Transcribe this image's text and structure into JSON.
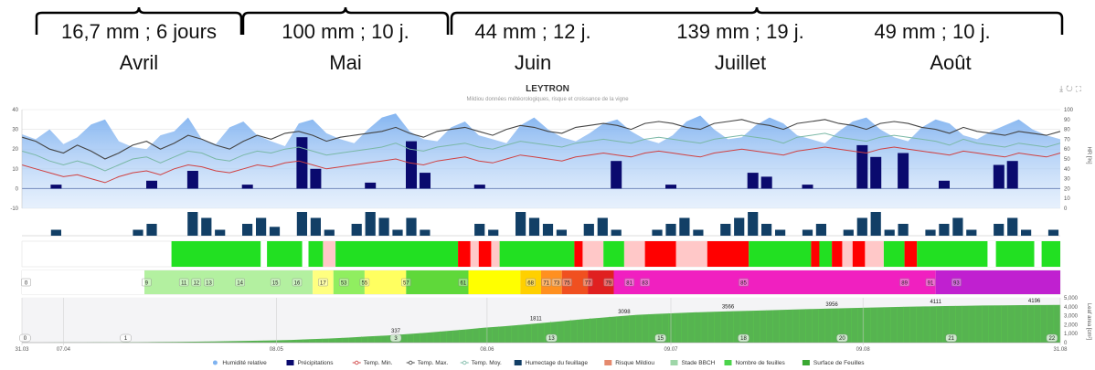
{
  "header": {
    "segments": [
      {
        "rain": "16,7 mm ; 6 jours",
        "month": "Avril"
      },
      {
        "rain": "100 mm ; 10 j.",
        "month": "Mai"
      },
      {
        "rain": "44 mm ; 12 j.",
        "month": "Juin"
      },
      {
        "rain": "139 mm ; 19 j.",
        "month": "Juillet"
      },
      {
        "rain": "49 mm ; 10 j.",
        "month": "Août"
      }
    ]
  },
  "chart_title": "LEYTRON",
  "chart_subtitle": "Mildiou données météorologiques, risque et croissance de la vigne",
  "toolbar": {
    "icons": [
      "download-icon",
      "refresh-icon",
      "fullscreen-icon"
    ]
  },
  "chart_data": {
    "type": "multi-panel",
    "left_axis_ticks": [
      "40",
      "30",
      "20",
      "10",
      "0",
      "-10"
    ],
    "right_axis_ticks": [
      "100",
      "90",
      "80",
      "70",
      "60",
      "50",
      "40",
      "30",
      "20",
      "10",
      "0"
    ],
    "right_axis_label": "HR [%]",
    "growth_right_ticks": [
      "5,000",
      "4,000",
      "3,000",
      "2,000",
      "1,000",
      "0"
    ],
    "growth_right_label": "Leaf area [cm²]",
    "x_ticks": [
      "31.03",
      "07.04",
      "08.05",
      "08.06",
      "09.07",
      "09.08",
      "31.08"
    ],
    "temp_min": [
      12,
      10,
      8,
      6,
      7,
      5,
      3,
      6,
      8,
      9,
      7,
      10,
      12,
      11,
      9,
      8,
      10,
      12,
      11,
      13,
      14,
      12,
      10,
      11,
      12,
      13,
      14,
      15,
      13,
      12,
      14,
      15,
      16,
      14,
      13,
      15,
      17,
      16,
      15,
      14,
      16,
      17,
      18,
      17,
      16,
      18,
      19,
      18,
      17,
      16,
      18,
      19,
      20,
      19,
      18,
      17,
      19,
      20,
      21,
      20,
      19,
      18,
      20,
      21,
      20,
      19,
      18,
      17,
      19,
      18,
      17,
      16,
      18,
      17,
      16,
      18
    ],
    "temp_max": [
      26,
      24,
      20,
      18,
      22,
      19,
      15,
      18,
      22,
      24,
      20,
      23,
      27,
      25,
      22,
      20,
      24,
      27,
      25,
      28,
      29,
      27,
      24,
      26,
      27,
      28,
      29,
      31,
      28,
      26,
      29,
      30,
      31,
      29,
      27,
      30,
      32,
      31,
      29,
      28,
      31,
      32,
      33,
      32,
      30,
      33,
      34,
      33,
      31,
      30,
      33,
      34,
      35,
      33,
      32,
      30,
      33,
      34,
      35,
      33,
      32,
      30,
      33,
      34,
      33,
      31,
      30,
      28,
      31,
      29,
      28,
      27,
      29,
      28,
      27,
      29
    ],
    "temp_moy": [
      19,
      17,
      14,
      12,
      14,
      12,
      9,
      12,
      15,
      16,
      13,
      16,
      19,
      18,
      15,
      14,
      17,
      19,
      18,
      20,
      21,
      19,
      17,
      18,
      19,
      20,
      21,
      23,
      20,
      19,
      21,
      22,
      23,
      21,
      20,
      22,
      24,
      23,
      22,
      21,
      23,
      24,
      25,
      24,
      23,
      25,
      26,
      25,
      24,
      23,
      25,
      26,
      27,
      26,
      25,
      23,
      26,
      27,
      28,
      26,
      25,
      24,
      26,
      27,
      26,
      25,
      24,
      22,
      25,
      23,
      22,
      21,
      23,
      22,
      21,
      23
    ],
    "humidity": [
      75,
      70,
      80,
      65,
      72,
      85,
      90,
      68,
      62,
      60,
      74,
      78,
      92,
      70,
      65,
      82,
      88,
      74,
      68,
      63,
      86,
      90,
      76,
      70,
      66,
      80,
      92,
      96,
      78,
      70,
      68,
      82,
      88,
      74,
      70,
      66,
      84,
      92,
      80,
      72,
      68,
      76,
      86,
      90,
      78,
      70,
      66,
      74,
      88,
      94,
      80,
      70,
      72,
      84,
      92,
      86,
      74,
      70,
      66,
      78,
      88,
      92,
      80,
      72,
      68,
      82,
      90,
      86,
      74,
      70,
      78,
      84,
      90,
      80,
      74,
      70
    ],
    "precipitation": [
      0,
      0,
      2,
      0,
      0,
      0,
      0,
      0,
      0,
      4,
      0,
      0,
      9,
      0,
      0,
      0,
      2,
      0,
      0,
      0,
      26,
      10,
      0,
      0,
      0,
      3,
      0,
      0,
      24,
      8,
      0,
      0,
      0,
      2,
      0,
      0,
      0,
      0,
      0,
      0,
      0,
      0,
      0,
      14,
      0,
      0,
      0,
      2,
      0,
      0,
      0,
      0,
      0,
      8,
      6,
      0,
      0,
      2,
      0,
      0,
      0,
      22,
      16,
      0,
      18,
      0,
      0,
      4,
      0,
      0,
      0,
      12,
      14,
      0,
      0,
      0
    ],
    "leaf_wetness": [
      0,
      0,
      2,
      0,
      0,
      0,
      0,
      0,
      2,
      4,
      0,
      0,
      8,
      6,
      2,
      0,
      4,
      6,
      3,
      0,
      8,
      6,
      2,
      0,
      4,
      8,
      6,
      2,
      6,
      2,
      0,
      0,
      0,
      4,
      2,
      0,
      8,
      6,
      4,
      2,
      0,
      4,
      6,
      2,
      0,
      0,
      2,
      4,
      6,
      2,
      0,
      4,
      6,
      8,
      4,
      2,
      0,
      2,
      4,
      0,
      2,
      6,
      8,
      2,
      4,
      0,
      2,
      4,
      6,
      2,
      0,
      4,
      6,
      2,
      0,
      2
    ],
    "risk_segments": [
      {
        "from": 0.144,
        "to": 0.23,
        "level": "low"
      },
      {
        "from": 0.23,
        "to": 0.236,
        "level": "none"
      },
      {
        "from": 0.236,
        "to": 0.27,
        "level": "low"
      },
      {
        "from": 0.27,
        "to": 0.276,
        "level": "none"
      },
      {
        "from": 0.276,
        "to": 0.29,
        "level": "low"
      },
      {
        "from": 0.29,
        "to": 0.302,
        "level": "moderate"
      },
      {
        "from": 0.302,
        "to": 0.42,
        "level": "low"
      },
      {
        "from": 0.42,
        "to": 0.432,
        "level": "high"
      },
      {
        "from": 0.432,
        "to": 0.44,
        "level": "moderate"
      },
      {
        "from": 0.44,
        "to": 0.452,
        "level": "high"
      },
      {
        "from": 0.452,
        "to": 0.46,
        "level": "moderate"
      },
      {
        "from": 0.46,
        "to": 0.532,
        "level": "low"
      },
      {
        "from": 0.532,
        "to": 0.54,
        "level": "high"
      },
      {
        "from": 0.54,
        "to": 0.56,
        "level": "moderate"
      },
      {
        "from": 0.56,
        "to": 0.58,
        "level": "low"
      },
      {
        "from": 0.58,
        "to": 0.6,
        "level": "moderate"
      },
      {
        "from": 0.6,
        "to": 0.63,
        "level": "high"
      },
      {
        "from": 0.63,
        "to": 0.66,
        "level": "moderate"
      },
      {
        "from": 0.66,
        "to": 0.7,
        "level": "high"
      },
      {
        "from": 0.7,
        "to": 0.76,
        "level": "low"
      },
      {
        "from": 0.76,
        "to": 0.768,
        "level": "high"
      },
      {
        "from": 0.768,
        "to": 0.78,
        "level": "low"
      },
      {
        "from": 0.78,
        "to": 0.79,
        "level": "high"
      },
      {
        "from": 0.79,
        "to": 0.8,
        "level": "moderate"
      },
      {
        "from": 0.8,
        "to": 0.812,
        "level": "high"
      },
      {
        "from": 0.812,
        "to": 0.83,
        "level": "moderate"
      },
      {
        "from": 0.83,
        "to": 0.85,
        "level": "low"
      },
      {
        "from": 0.85,
        "to": 0.862,
        "level": "high"
      },
      {
        "from": 0.862,
        "to": 0.93,
        "level": "low"
      },
      {
        "from": 0.93,
        "to": 0.938,
        "level": "none"
      },
      {
        "from": 0.938,
        "to": 0.975,
        "level": "low"
      },
      {
        "from": 0.975,
        "to": 0.982,
        "level": "none"
      },
      {
        "from": 0.982,
        "to": 1,
        "level": "low"
      }
    ],
    "bbch_segments": [
      {
        "from": 0.0,
        "to": 0.118,
        "color": "#ffffff"
      },
      {
        "from": 0.118,
        "to": 0.28,
        "color": "#b3f0a0"
      },
      {
        "from": 0.28,
        "to": 0.3,
        "color": "#ffff80"
      },
      {
        "from": 0.3,
        "to": 0.33,
        "color": "#90ee60"
      },
      {
        "from": 0.33,
        "to": 0.37,
        "color": "#ffff60"
      },
      {
        "from": 0.37,
        "to": 0.43,
        "color": "#5fd83a"
      },
      {
        "from": 0.43,
        "to": 0.48,
        "color": "#ffff00"
      },
      {
        "from": 0.48,
        "to": 0.5,
        "color": "#ffd000"
      },
      {
        "from": 0.5,
        "to": 0.52,
        "color": "#ff9020"
      },
      {
        "from": 0.52,
        "to": 0.545,
        "color": "#f05020"
      },
      {
        "from": 0.545,
        "to": 0.57,
        "color": "#e02020"
      },
      {
        "from": 0.57,
        "to": 0.88,
        "color": "#f020c0"
      },
      {
        "from": 0.88,
        "to": 1.0,
        "color": "#c020d0"
      }
    ],
    "bbch_labels": [
      {
        "pos": 0.004,
        "text": "0"
      },
      {
        "pos": 0.12,
        "text": "9"
      },
      {
        "pos": 0.156,
        "text": "11"
      },
      {
        "pos": 0.168,
        "text": "12"
      },
      {
        "pos": 0.18,
        "text": "13"
      },
      {
        "pos": 0.21,
        "text": "14"
      },
      {
        "pos": 0.244,
        "text": "15"
      },
      {
        "pos": 0.265,
        "text": "16"
      },
      {
        "pos": 0.29,
        "text": "17"
      },
      {
        "pos": 0.31,
        "text": "53"
      },
      {
        "pos": 0.33,
        "text": "55"
      },
      {
        "pos": 0.37,
        "text": "57"
      },
      {
        "pos": 0.425,
        "text": "61"
      },
      {
        "pos": 0.49,
        "text": "68"
      },
      {
        "pos": 0.505,
        "text": "71"
      },
      {
        "pos": 0.515,
        "text": "73"
      },
      {
        "pos": 0.525,
        "text": "75"
      },
      {
        "pos": 0.545,
        "text": "77"
      },
      {
        "pos": 0.565,
        "text": "79"
      },
      {
        "pos": 0.585,
        "text": "81"
      },
      {
        "pos": 0.6,
        "text": "83"
      },
      {
        "pos": 0.695,
        "text": "85"
      },
      {
        "pos": 0.85,
        "text": "89"
      },
      {
        "pos": 0.875,
        "text": "91"
      },
      {
        "pos": 0.9,
        "text": "93"
      }
    ],
    "leaf_area": [
      0,
      5,
      10,
      15,
      20,
      30,
      40,
      60,
      80,
      100,
      130,
      160,
      200,
      250,
      300,
      380,
      460,
      560,
      680,
      800,
      940,
      1100,
      1280,
      1460,
      1650,
      1811,
      1990,
      2180,
      2380,
      2580,
      2760,
      2940,
      3098,
      3200,
      3300,
      3380,
      3450,
      3510,
      3566,
      3620,
      3680,
      3740,
      3800,
      3850,
      3900,
      3956,
      4000,
      4040,
      4080,
      4111,
      4140,
      4160,
      4180,
      4196,
      4200
    ],
    "leaf_area_labels": [
      {
        "pos": 0.36,
        "text": "337"
      },
      {
        "pos": 0.495,
        "text": "1811"
      },
      {
        "pos": 0.58,
        "text": "3098"
      },
      {
        "pos": 0.68,
        "text": "3566"
      },
      {
        "pos": 0.78,
        "text": "3956"
      },
      {
        "pos": 0.88,
        "text": "4111"
      },
      {
        "pos": 0.975,
        "text": "4196"
      }
    ],
    "leaf_count_markers": [
      {
        "pos": 0.003,
        "text": "0"
      },
      {
        "pos": 0.1,
        "text": "1"
      },
      {
        "pos": 0.36,
        "text": "3"
      },
      {
        "pos": 0.51,
        "text": "13"
      },
      {
        "pos": 0.615,
        "text": "15"
      },
      {
        "pos": 0.695,
        "text": "18"
      },
      {
        "pos": 0.79,
        "text": "20"
      },
      {
        "pos": 0.895,
        "text": "21"
      },
      {
        "pos": 0.992,
        "text": "22"
      }
    ],
    "legend": [
      {
        "key": "humidity",
        "label": "Humidité relative",
        "color": "#7fb3f0",
        "kind": "dot"
      },
      {
        "key": "precip",
        "label": "Précipitations",
        "color": "#0a0a6e",
        "kind": "box"
      },
      {
        "key": "tmin",
        "label": "Temp. Min.",
        "color": "#d04040",
        "kind": "line"
      },
      {
        "key": "tmax",
        "label": "Temp. Max.",
        "color": "#444444",
        "kind": "line"
      },
      {
        "key": "tmoy",
        "label": "Temp. Moy.",
        "color": "#7ab8a6",
        "kind": "line"
      },
      {
        "key": "wet",
        "label": "Humectage du feuillage",
        "color": "#123f66",
        "kind": "box"
      },
      {
        "key": "risk",
        "label": "Risque Mildiou",
        "color": "#e58a6e",
        "kind": "box"
      },
      {
        "key": "bbch",
        "label": "Stade BBCH",
        "color": "#9ed6a8",
        "kind": "box"
      },
      {
        "key": "leafcount",
        "label": "Nombre de feuilles",
        "color": "#4cd44c",
        "kind": "box"
      },
      {
        "key": "leafarea",
        "label": "Surface de Feuilles",
        "color": "#3aa832",
        "kind": "box"
      }
    ],
    "risk_colors": {
      "low": "#22e022",
      "moderate": "#ffc8c8",
      "high": "#ff0000",
      "none": "#ffffff"
    }
  }
}
